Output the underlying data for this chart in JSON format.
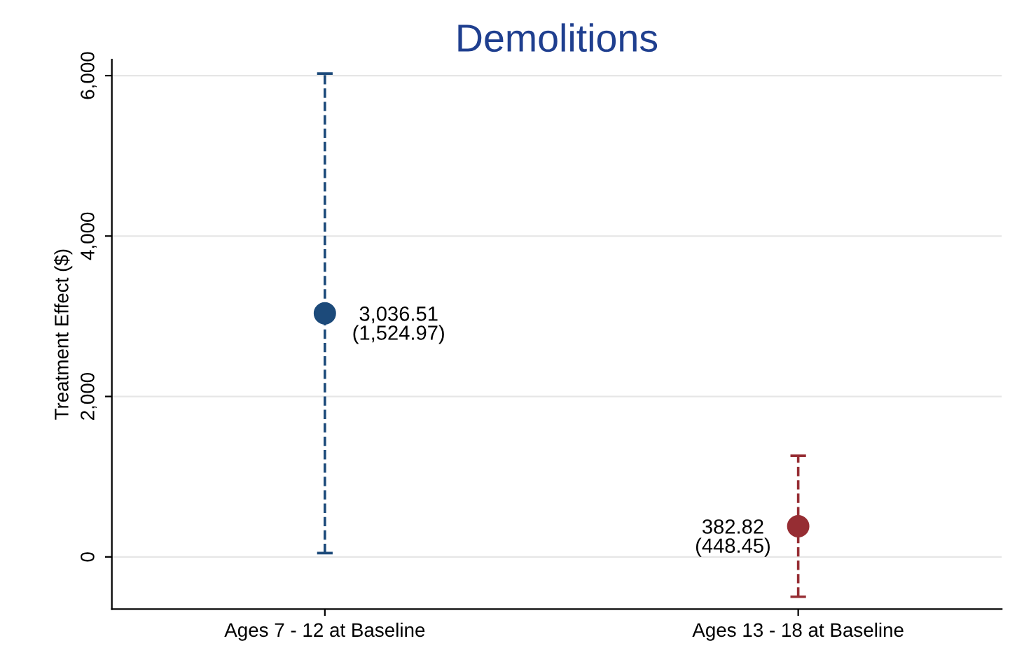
{
  "chart_data": {
    "type": "scatter",
    "title": "Demolitions",
    "ylabel": "Treatment Effect ($)",
    "categories": [
      "Ages 7 - 12 at Baseline",
      "Ages 13 - 18 at Baseline"
    ],
    "values": [
      3036.51,
      382.82
    ],
    "errors": [
      2988.94,
      878.96
    ],
    "colors": [
      "#1c4a7a",
      "#962d33"
    ],
    "value_labels": [
      "3,036.51\n(1,524.97)",
      "382.82\n(448.45)"
    ],
    "ylim": [
      -650,
      6200
    ],
    "yticks": [
      {
        "value": 0,
        "label": "0"
      },
      {
        "value": 2000,
        "label": "2,000"
      },
      {
        "value": 4000,
        "label": "4,000"
      },
      {
        "value": 6000,
        "label": "6,000"
      }
    ],
    "grid": "y",
    "marker": "circle",
    "line_style": "dashed"
  }
}
